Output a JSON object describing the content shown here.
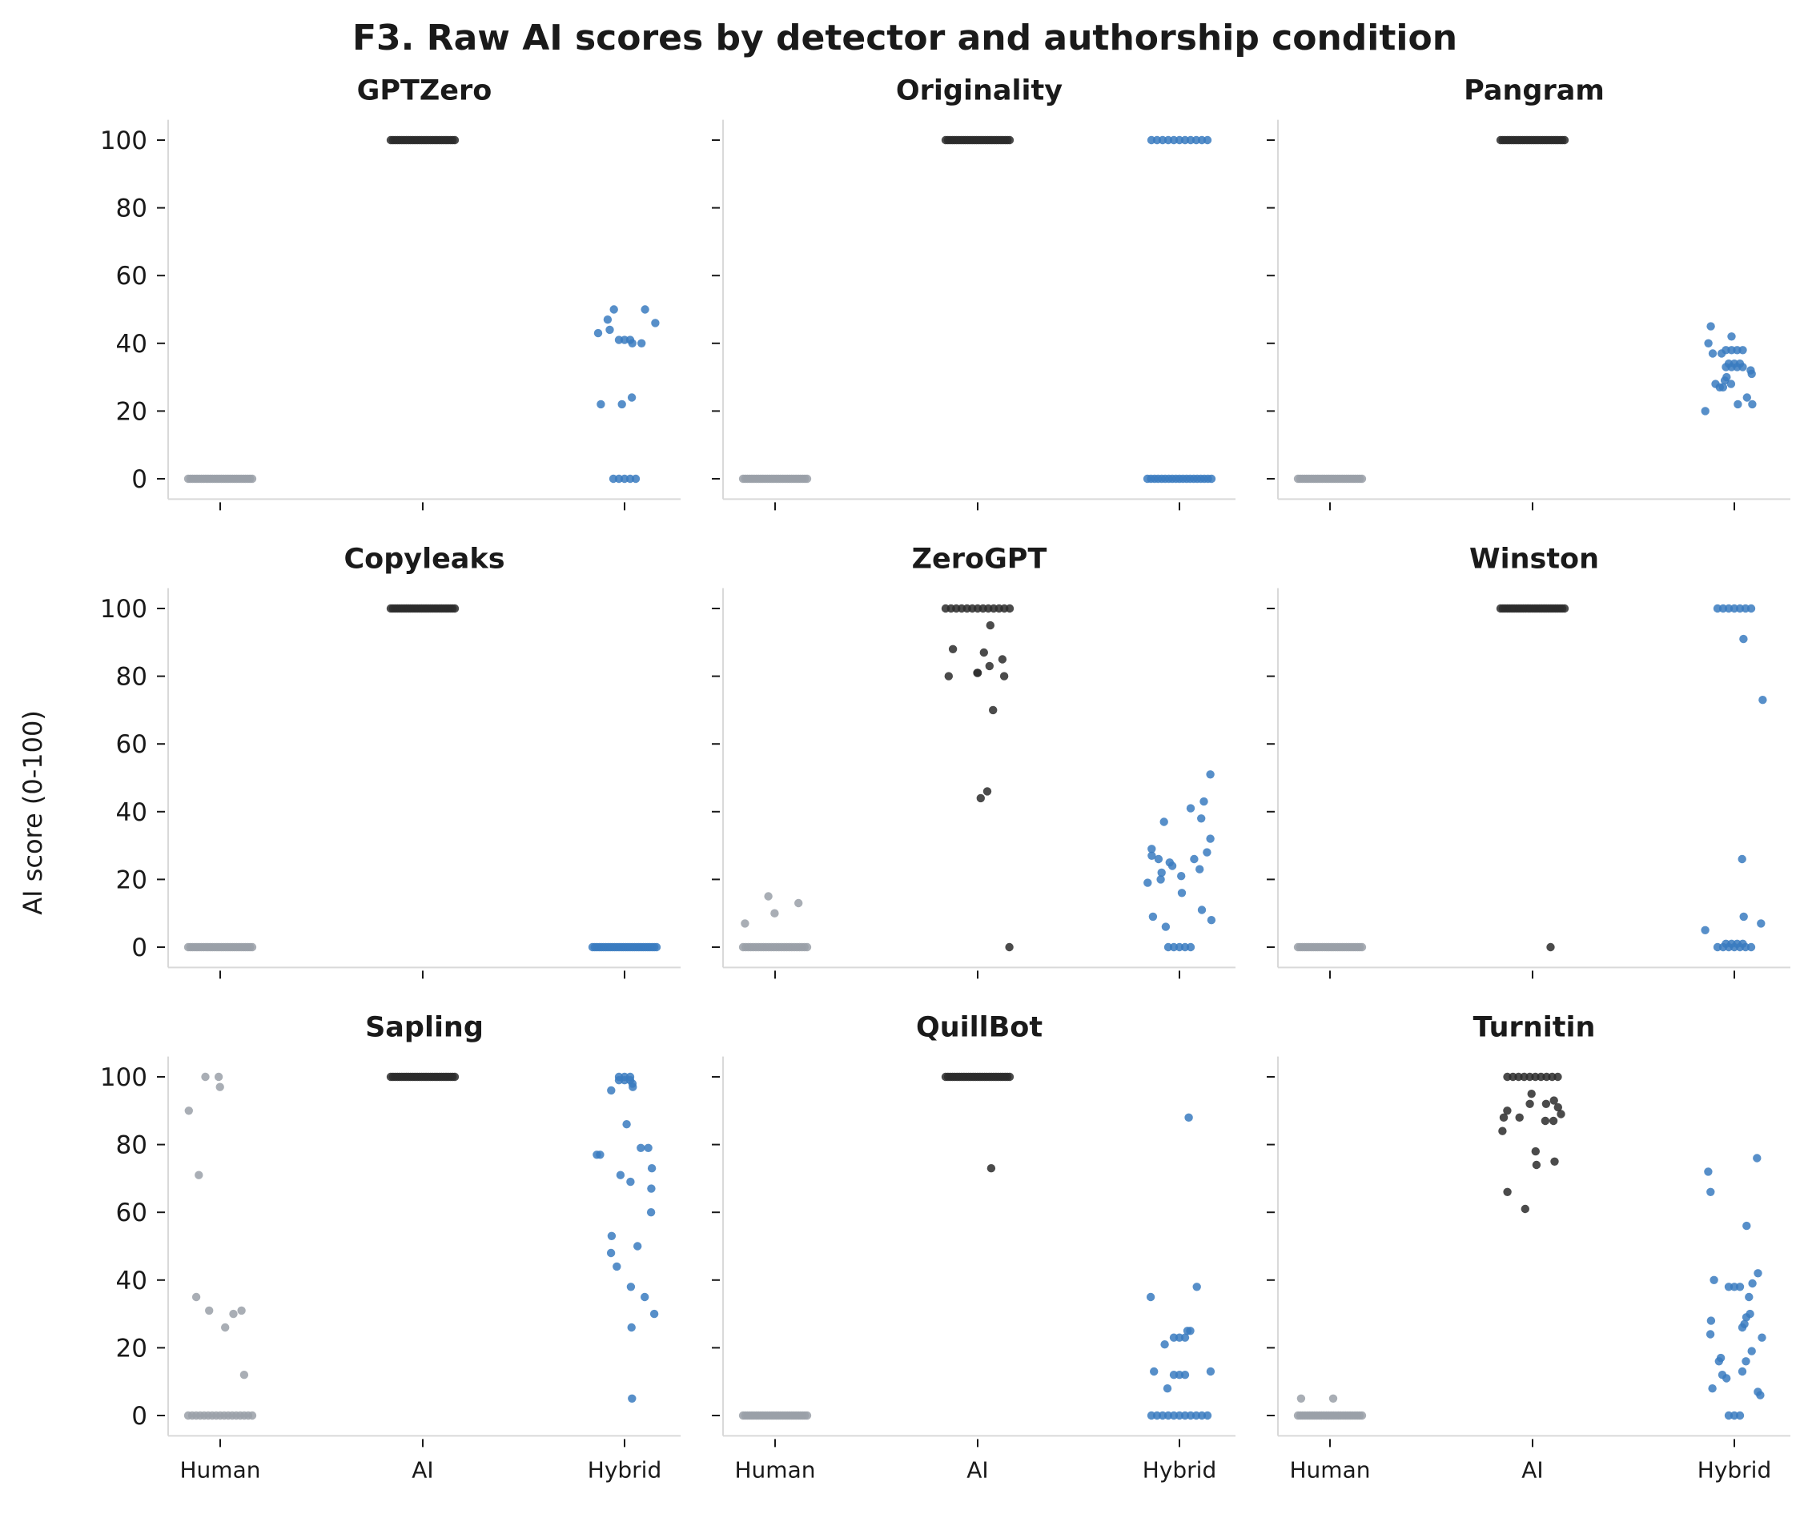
{
  "figure": {
    "title": "F3. Raw AI scores by detector and authorship condition",
    "ylabel": "AI score (0-100)"
  },
  "colors": {
    "Human": "#9aa0a8",
    "AI": "#2b2b2b",
    "Hybrid": "#3a7bbf",
    "axis": "#d9d9d9",
    "text": "#1a1a1a"
  },
  "chart_data": [
    {
      "type": "scatter",
      "title": "GPTZero",
      "categories": [
        "Human",
        "AI",
        "Hybrid"
      ],
      "yticks": [
        0,
        20,
        40,
        60,
        80,
        100
      ],
      "ylim": [
        -6,
        106
      ],
      "series": [
        {
          "category": "Human",
          "values": [
            0,
            0,
            0,
            0,
            0,
            0,
            0,
            0,
            0,
            0,
            0,
            0,
            0,
            0,
            0,
            0,
            0,
            0,
            0,
            0,
            0,
            0,
            0,
            0,
            0,
            0,
            0,
            0,
            0,
            0
          ]
        },
        {
          "category": "AI",
          "values": [
            100,
            100,
            100,
            100,
            100,
            100,
            100,
            100,
            100,
            100,
            100,
            100,
            100,
            100,
            100,
            100,
            100,
            100,
            100,
            100,
            100,
            100,
            100,
            100,
            100,
            100,
            100,
            100,
            100,
            100
          ]
        },
        {
          "category": "Hybrid",
          "values": [
            50,
            47,
            50,
            46,
            44,
            43,
            41,
            41,
            41,
            40,
            40,
            24,
            22,
            22,
            0,
            0,
            0,
            0,
            0
          ]
        }
      ]
    },
    {
      "type": "scatter",
      "title": "Originality",
      "categories": [
        "Human",
        "AI",
        "Hybrid"
      ],
      "yticks": [
        0,
        20,
        40,
        60,
        80,
        100
      ],
      "ylim": [
        -6,
        106
      ],
      "series": [
        {
          "category": "Human",
          "values": [
            0,
            0,
            0,
            0,
            0,
            0,
            0,
            0,
            0,
            0,
            0,
            0,
            0,
            0,
            0,
            0,
            0,
            0,
            0,
            0,
            0,
            0,
            0,
            0,
            0,
            0,
            0,
            0,
            0,
            0
          ]
        },
        {
          "category": "AI",
          "values": [
            100,
            100,
            100,
            100,
            100,
            100,
            100,
            100,
            100,
            100,
            100,
            100,
            100,
            100,
            100,
            100,
            100,
            100,
            100,
            100,
            100,
            100,
            100,
            100,
            100,
            100,
            100,
            100,
            100,
            100
          ]
        },
        {
          "category": "Hybrid",
          "values": [
            100,
            100,
            100,
            100,
            100,
            100,
            100,
            100,
            100,
            100,
            100,
            0,
            0,
            0,
            0,
            0,
            0,
            0,
            0,
            0,
            0,
            0,
            0,
            0,
            0,
            0,
            0,
            0,
            0,
            0
          ]
        }
      ]
    },
    {
      "type": "scatter",
      "title": "Pangram",
      "categories": [
        "Human",
        "AI",
        "Hybrid"
      ],
      "yticks": [
        0,
        20,
        40,
        60,
        80,
        100
      ],
      "ylim": [
        -6,
        106
      ],
      "series": [
        {
          "category": "Human",
          "values": [
            0,
            0,
            0,
            0,
            0,
            0,
            0,
            0,
            0,
            0,
            0,
            0,
            0,
            0,
            0,
            0,
            0,
            0,
            0,
            0,
            0,
            0,
            0,
            0,
            0,
            0,
            0,
            0,
            0,
            0
          ]
        },
        {
          "category": "AI",
          "values": [
            100,
            100,
            100,
            100,
            100,
            100,
            100,
            100,
            100,
            100,
            100,
            100,
            100,
            100,
            100,
            100,
            100,
            100,
            100,
            100,
            100,
            100,
            100,
            100,
            100,
            100,
            100,
            100,
            100,
            100
          ]
        },
        {
          "category": "Hybrid",
          "values": [
            45,
            42,
            40,
            38,
            38,
            38,
            38,
            37,
            37,
            34,
            34,
            34,
            33,
            33,
            33,
            33,
            32,
            31,
            30,
            29,
            28,
            28,
            27,
            27,
            24,
            22,
            22,
            20
          ]
        }
      ]
    },
    {
      "type": "scatter",
      "title": "Copyleaks",
      "categories": [
        "Human",
        "AI",
        "Hybrid"
      ],
      "yticks": [
        0,
        20,
        40,
        60,
        80,
        100
      ],
      "ylim": [
        -6,
        106
      ],
      "series": [
        {
          "category": "Human",
          "values": [
            0,
            0,
            0,
            0,
            0,
            0,
            0,
            0,
            0,
            0,
            0,
            0,
            0,
            0,
            0,
            0,
            0,
            0,
            0,
            0,
            0,
            0,
            0,
            0,
            0,
            0,
            0,
            0,
            0,
            0
          ]
        },
        {
          "category": "AI",
          "values": [
            100,
            100,
            100,
            100,
            100,
            100,
            100,
            100,
            100,
            100,
            100,
            100,
            100,
            100,
            100,
            100,
            100,
            100,
            100,
            100,
            100,
            100,
            100,
            100,
            100,
            100,
            100,
            100,
            100,
            100
          ]
        },
        {
          "category": "Hybrid",
          "values": [
            0,
            0,
            0,
            0,
            0,
            0,
            0,
            0,
            0,
            0,
            0,
            0,
            0,
            0,
            0,
            0,
            0,
            0,
            0,
            0,
            0,
            0,
            0,
            0,
            0,
            0,
            0,
            0,
            0,
            0
          ]
        }
      ]
    },
    {
      "type": "scatter",
      "title": "ZeroGPT",
      "categories": [
        "Human",
        "AI",
        "Hybrid"
      ],
      "yticks": [
        0,
        20,
        40,
        60,
        80,
        100
      ],
      "ylim": [
        -6,
        106
      ],
      "series": [
        {
          "category": "Human",
          "values": [
            15,
            13,
            10,
            7,
            0,
            0,
            0,
            0,
            0,
            0,
            0,
            0,
            0,
            0,
            0,
            0,
            0,
            0,
            0,
            0,
            0,
            0,
            0,
            0,
            0,
            0,
            0,
            0,
            0,
            0
          ]
        },
        {
          "category": "AI",
          "values": [
            100,
            100,
            100,
            100,
            100,
            100,
            100,
            100,
            100,
            100,
            100,
            100,
            100,
            95,
            88,
            87,
            85,
            83,
            81,
            81,
            80,
            80,
            70,
            46,
            44,
            0
          ]
        },
        {
          "category": "Hybrid",
          "values": [
            51,
            43,
            41,
            38,
            37,
            32,
            29,
            28,
            27,
            26,
            26,
            25,
            24,
            23,
            22,
            21,
            20,
            19,
            16,
            11,
            9,
            8,
            6,
            0,
            0,
            0,
            0,
            0
          ]
        }
      ]
    },
    {
      "type": "scatter",
      "title": "Winston",
      "categories": [
        "Human",
        "AI",
        "Hybrid"
      ],
      "yticks": [
        0,
        20,
        40,
        60,
        80,
        100
      ],
      "ylim": [
        -6,
        106
      ],
      "series": [
        {
          "category": "Human",
          "values": [
            0,
            0,
            0,
            0,
            0,
            0,
            0,
            0,
            0,
            0,
            0,
            0,
            0,
            0,
            0,
            0,
            0,
            0,
            0,
            0,
            0,
            0,
            0,
            0,
            0,
            0,
            0,
            0,
            0,
            0
          ]
        },
        {
          "category": "AI",
          "values": [
            100,
            100,
            100,
            100,
            100,
            100,
            100,
            100,
            100,
            100,
            100,
            100,
            100,
            100,
            100,
            100,
            100,
            100,
            100,
            100,
            100,
            100,
            100,
            100,
            100,
            100,
            100,
            100,
            100,
            0
          ]
        },
        {
          "category": "Hybrid",
          "values": [
            100,
            100,
            100,
            100,
            100,
            100,
            100,
            91,
            73,
            26,
            9,
            7,
            5,
            1,
            1,
            1,
            1,
            0,
            0,
            0,
            0,
            0,
            0,
            0
          ]
        }
      ]
    },
    {
      "type": "scatter",
      "title": "Sapling",
      "categories": [
        "Human",
        "AI",
        "Hybrid"
      ],
      "yticks": [
        0,
        20,
        40,
        60,
        80,
        100
      ],
      "ylim": [
        -6,
        106
      ],
      "series": [
        {
          "category": "Human",
          "values": [
            100,
            100,
            97,
            90,
            71,
            35,
            31,
            31,
            30,
            26,
            12,
            0,
            0,
            0,
            0,
            0,
            0,
            0,
            0,
            0,
            0,
            0,
            0,
            0,
            0,
            0,
            0,
            0
          ]
        },
        {
          "category": "AI",
          "values": [
            100,
            100,
            100,
            100,
            100,
            100,
            100,
            100,
            100,
            100,
            100,
            100,
            100,
            100,
            100,
            100,
            100,
            100,
            100,
            100,
            100,
            100,
            100,
            100,
            100,
            100,
            100,
            100,
            100,
            100
          ]
        },
        {
          "category": "Hybrid",
          "values": [
            100,
            100,
            100,
            99,
            99,
            99,
            98,
            97,
            96,
            86,
            79,
            79,
            77,
            77,
            73,
            71,
            69,
            67,
            60,
            53,
            50,
            48,
            44,
            38,
            35,
            30,
            26,
            5
          ]
        }
      ]
    },
    {
      "type": "scatter",
      "title": "QuillBot",
      "categories": [
        "Human",
        "AI",
        "Hybrid"
      ],
      "yticks": [
        0,
        20,
        40,
        60,
        80,
        100
      ],
      "ylim": [
        -6,
        106
      ],
      "series": [
        {
          "category": "Human",
          "values": [
            0,
            0,
            0,
            0,
            0,
            0,
            0,
            0,
            0,
            0,
            0,
            0,
            0,
            0,
            0,
            0,
            0,
            0,
            0,
            0,
            0,
            0,
            0,
            0,
            0,
            0,
            0,
            0,
            0,
            0
          ]
        },
        {
          "category": "AI",
          "values": [
            100,
            100,
            100,
            100,
            100,
            100,
            100,
            100,
            100,
            100,
            100,
            100,
            100,
            100,
            100,
            100,
            100,
            100,
            100,
            100,
            100,
            100,
            100,
            100,
            100,
            100,
            100,
            100,
            100,
            73
          ]
        },
        {
          "category": "Hybrid",
          "values": [
            88,
            38,
            35,
            25,
            25,
            23,
            23,
            23,
            21,
            13,
            13,
            12,
            12,
            12,
            8,
            0,
            0,
            0,
            0,
            0,
            0,
            0,
            0,
            0,
            0,
            0
          ]
        }
      ]
    },
    {
      "type": "scatter",
      "title": "Turnitin",
      "categories": [
        "Human",
        "AI",
        "Hybrid"
      ],
      "yticks": [
        0,
        20,
        40,
        60,
        80,
        100
      ],
      "ylim": [
        -6,
        106
      ],
      "series": [
        {
          "category": "Human",
          "values": [
            5,
            5,
            0,
            0,
            0,
            0,
            0,
            0,
            0,
            0,
            0,
            0,
            0,
            0,
            0,
            0,
            0,
            0,
            0,
            0,
            0,
            0,
            0,
            0,
            0,
            0,
            0,
            0,
            0,
            0
          ]
        },
        {
          "category": "AI",
          "values": [
            100,
            100,
            100,
            100,
            100,
            100,
            100,
            100,
            100,
            100,
            95,
            93,
            92,
            92,
            91,
            90,
            89,
            88,
            88,
            87,
            87,
            84,
            78,
            75,
            74,
            66,
            61
          ]
        },
        {
          "category": "Hybrid",
          "values": [
            76,
            72,
            66,
            56,
            42,
            40,
            39,
            38,
            38,
            38,
            35,
            30,
            29,
            28,
            27,
            26,
            24,
            23,
            19,
            17,
            16,
            16,
            13,
            12,
            11,
            8,
            7,
            6,
            0,
            0,
            0
          ]
        }
      ]
    }
  ]
}
